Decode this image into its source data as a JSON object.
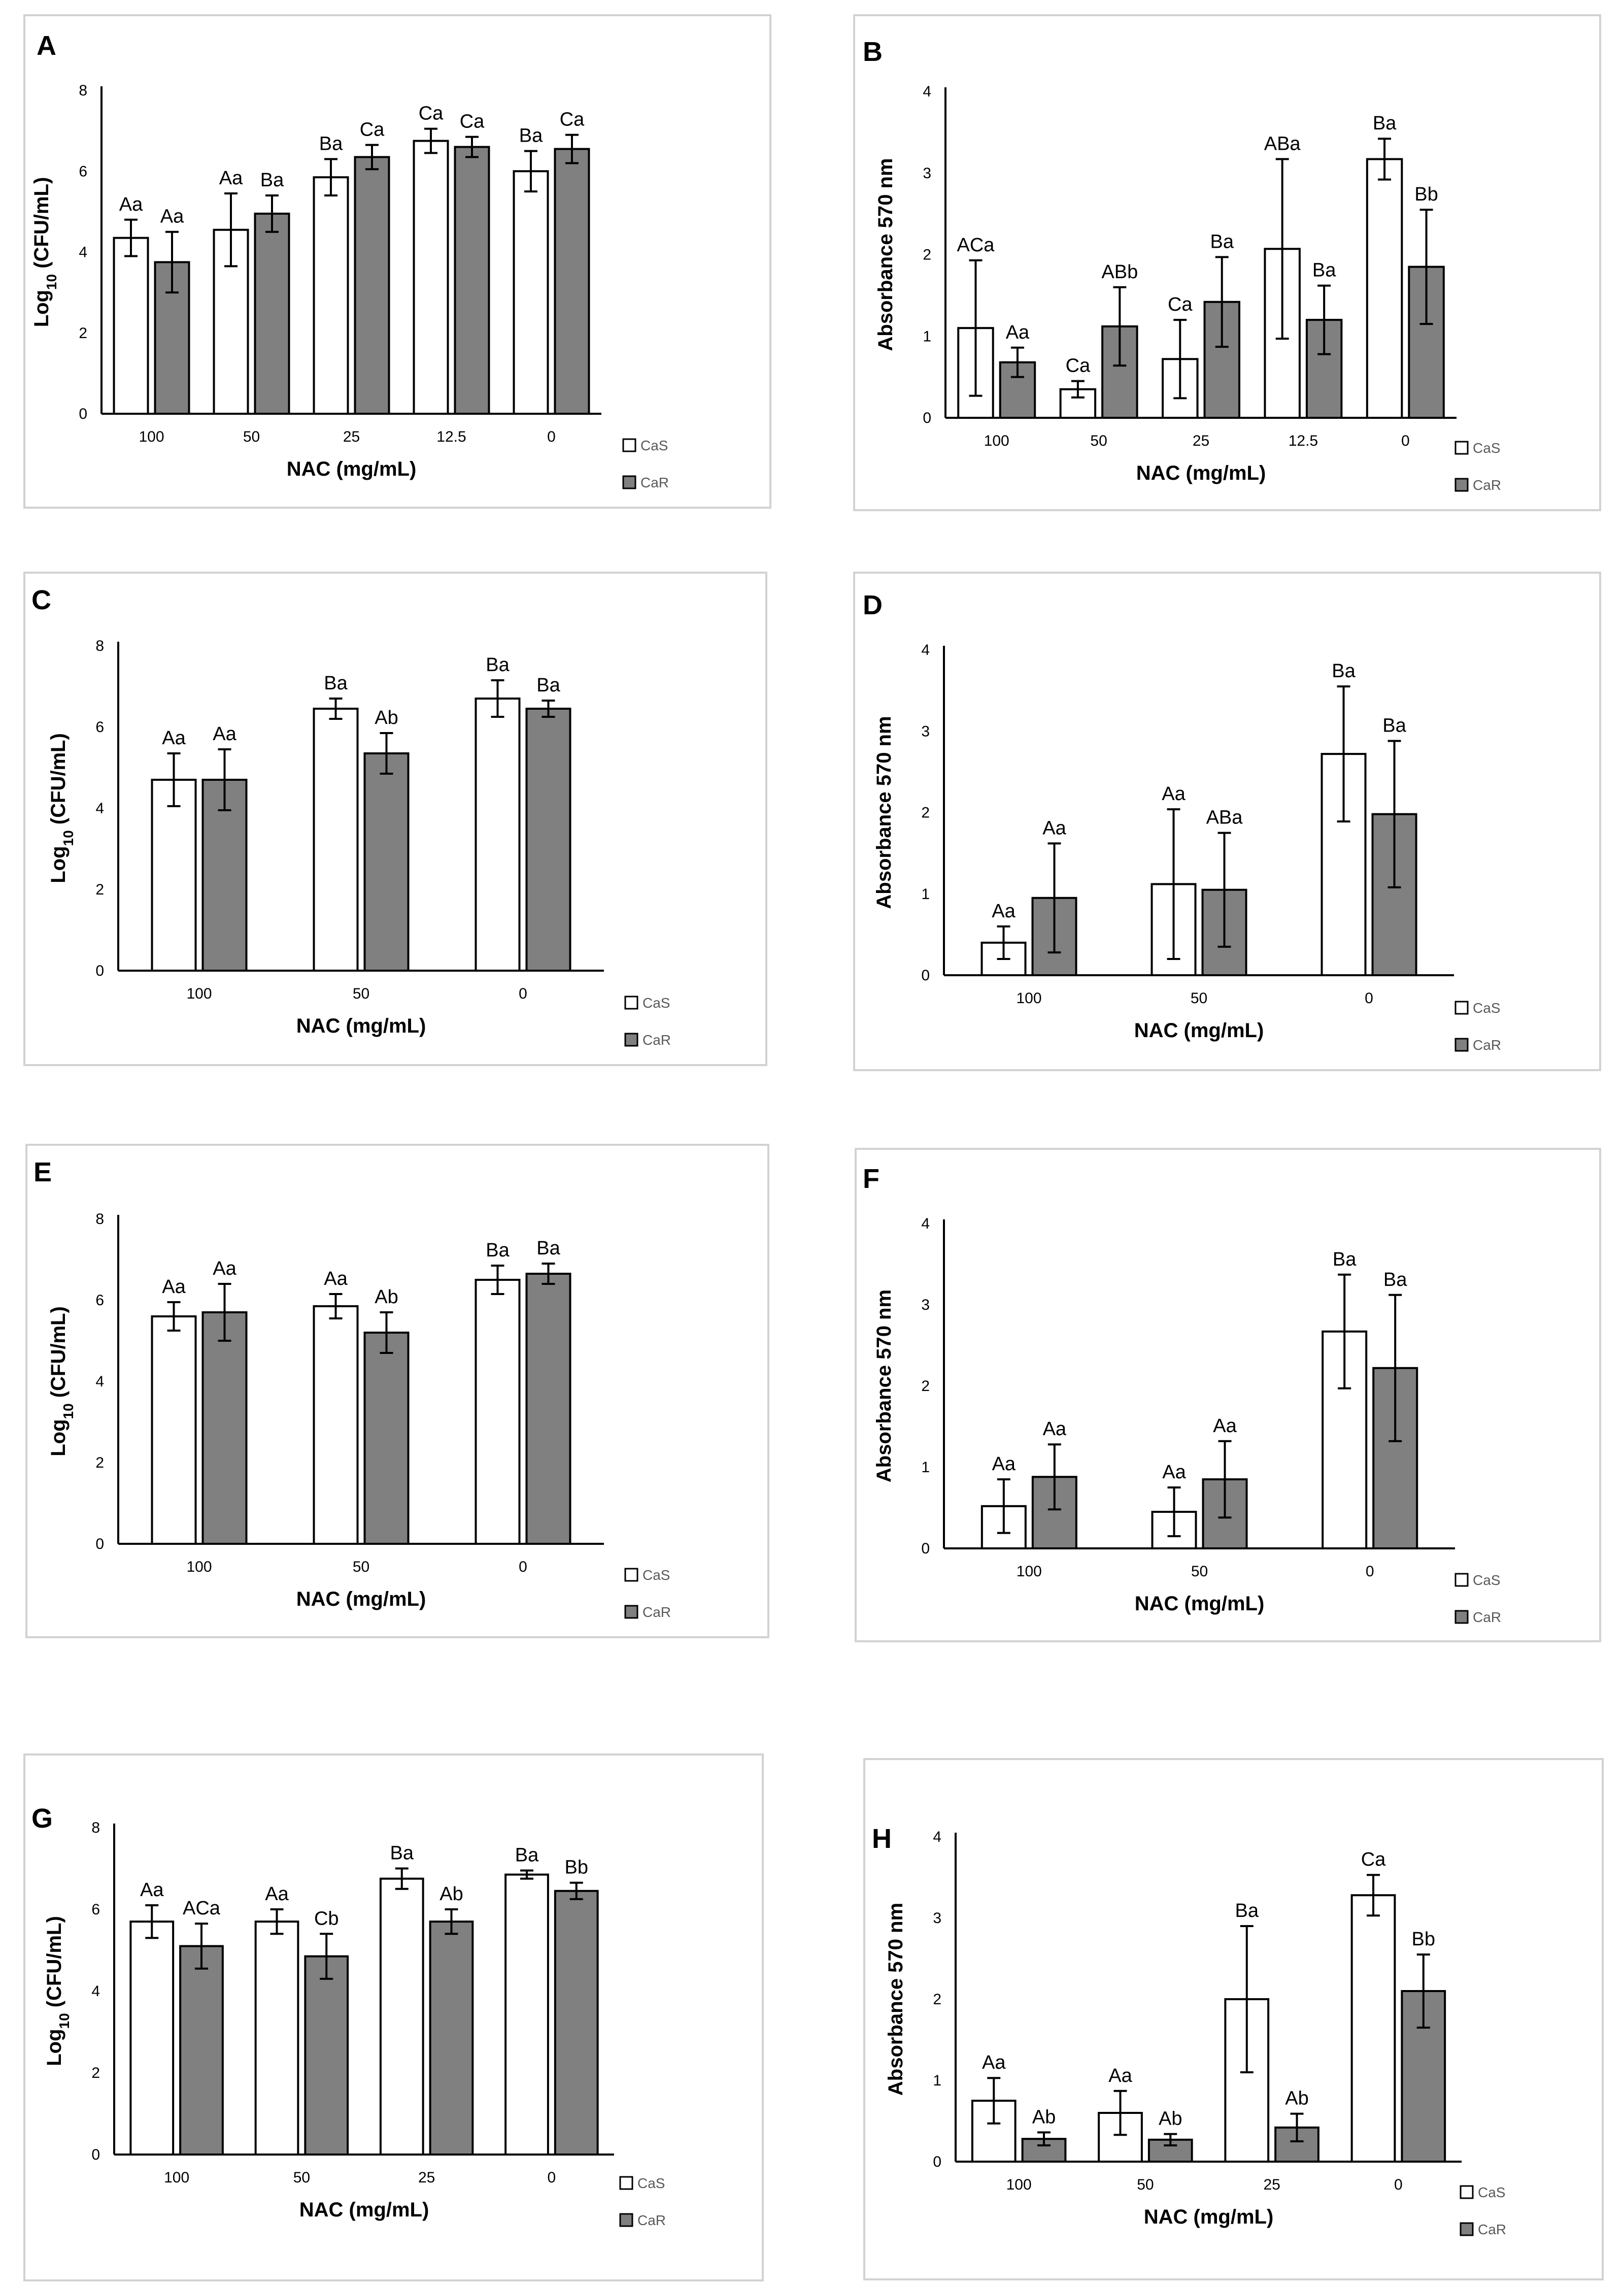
{
  "colors": {
    "CaS": "#ffffff",
    "CaR": "#808080",
    "frame": "#d2d2d2"
  },
  "chart_data": [
    {
      "panel": "A",
      "type": "bar",
      "xlabel": "NAC (mg/mL)",
      "ylabel_main": "Log",
      "ylabel_sub": "10",
      "ylabel_tail": " (CFU/mL)",
      "ylim": [
        0,
        8
      ],
      "yticks": [
        "0",
        "2",
        "4",
        "6",
        "8"
      ],
      "categories": [
        "100",
        "50",
        "25",
        "12.5",
        "0"
      ],
      "series": [
        {
          "name": "CaS",
          "values": [
            4.35,
            4.55,
            5.85,
            6.75,
            6.0
          ],
          "errors": [
            0.45,
            0.9,
            0.45,
            0.3,
            0.5
          ],
          "labels": [
            "Aa",
            "Aa",
            "Ba",
            "Ca",
            "Ba"
          ]
        },
        {
          "name": "CaR",
          "values": [
            3.75,
            4.95,
            6.35,
            6.6,
            6.55
          ],
          "errors": [
            0.75,
            0.45,
            0.3,
            0.25,
            0.35
          ],
          "labels": [
            "Aa",
            "Ba",
            "Ca",
            "Ca",
            "Ca"
          ]
        }
      ],
      "legend": "right"
    },
    {
      "panel": "B",
      "type": "bar",
      "xlabel": "NAC (mg/mL)",
      "ylabel_main": "Absorbance 570 nm",
      "ylabel_sub": "",
      "ylabel_tail": "",
      "ylim": [
        0,
        4
      ],
      "yticks": [
        "0",
        "1",
        "2",
        "3",
        "4"
      ],
      "categories": [
        "100",
        "50",
        "25",
        "12.5",
        "0"
      ],
      "series": [
        {
          "name": "CaS",
          "values": [
            1.1,
            0.35,
            0.72,
            2.07,
            3.17
          ],
          "errors": [
            0.83,
            0.1,
            0.48,
            1.1,
            0.25
          ],
          "labels": [
            "ACa",
            "Ca",
            "Ca",
            "ABa",
            "Ba"
          ]
        },
        {
          "name": "CaR",
          "values": [
            0.68,
            1.12,
            1.42,
            1.2,
            1.85
          ],
          "errors": [
            0.18,
            0.48,
            0.55,
            0.42,
            0.7
          ],
          "labels": [
            "Aa",
            "ABb",
            "Ba",
            "Ba",
            "Bb"
          ]
        }
      ],
      "legend": "right"
    },
    {
      "panel": "C",
      "type": "bar",
      "xlabel": "NAC (mg/mL)",
      "ylabel_main": "Log",
      "ylabel_sub": "10",
      "ylabel_tail": " (CFU/mL)",
      "ylim": [
        0,
        8
      ],
      "yticks": [
        "0",
        "2",
        "4",
        "6",
        "8"
      ],
      "categories": [
        "100",
        "50",
        "0"
      ],
      "series": [
        {
          "name": "CaS",
          "values": [
            4.7,
            6.45,
            6.7
          ],
          "errors": [
            0.65,
            0.25,
            0.45
          ],
          "labels": [
            "Aa",
            "Ba",
            "Ba"
          ]
        },
        {
          "name": "CaR",
          "values": [
            4.7,
            5.35,
            6.45
          ],
          "errors": [
            0.75,
            0.5,
            0.2
          ],
          "labels": [
            "Aa",
            "Ab",
            "Ba"
          ]
        }
      ],
      "legend": "right"
    },
    {
      "panel": "D",
      "type": "bar",
      "xlabel": "NAC (mg/mL)",
      "ylabel_main": "Absorbance 570 nm",
      "ylabel_sub": "",
      "ylabel_tail": "",
      "ylim": [
        0,
        4
      ],
      "yticks": [
        "0",
        "1",
        "2",
        "3",
        "4"
      ],
      "categories": [
        "100",
        "50",
        "0"
      ],
      "series": [
        {
          "name": "CaS",
          "values": [
            0.4,
            1.12,
            2.72
          ],
          "errors": [
            0.2,
            0.92,
            0.83
          ],
          "labels": [
            "Aa",
            "Aa",
            "Ba"
          ]
        },
        {
          "name": "CaR",
          "values": [
            0.95,
            1.05,
            1.98
          ],
          "errors": [
            0.67,
            0.7,
            0.9
          ],
          "labels": [
            "Aa",
            "ABa",
            "Ba"
          ]
        }
      ],
      "legend": "right"
    },
    {
      "panel": "E",
      "type": "bar",
      "xlabel": "NAC (mg/mL)",
      "ylabel_main": "Log",
      "ylabel_sub": "10",
      "ylabel_tail": " (CFU/mL)",
      "ylim": [
        0,
        8
      ],
      "yticks": [
        "0",
        "2",
        "4",
        "6",
        "8"
      ],
      "categories": [
        "100",
        "50",
        "0"
      ],
      "series": [
        {
          "name": "CaS",
          "values": [
            5.6,
            5.85,
            6.5
          ],
          "errors": [
            0.35,
            0.3,
            0.35
          ],
          "labels": [
            "Aa",
            "Aa",
            "Ba"
          ]
        },
        {
          "name": "CaR",
          "values": [
            5.7,
            5.2,
            6.65
          ],
          "errors": [
            0.7,
            0.5,
            0.25
          ],
          "labels": [
            "Aa",
            "Ab",
            "Ba"
          ]
        }
      ],
      "legend": "right"
    },
    {
      "panel": "F",
      "type": "bar",
      "xlabel": "NAC (mg/mL)",
      "ylabel_main": "Absorbance 570 nm",
      "ylabel_sub": "",
      "ylabel_tail": "",
      "ylim": [
        0,
        4
      ],
      "yticks": [
        "0",
        "1",
        "2",
        "3",
        "4"
      ],
      "categories": [
        "100",
        "50",
        "0"
      ],
      "series": [
        {
          "name": "CaS",
          "values": [
            0.52,
            0.45,
            2.67
          ],
          "errors": [
            0.33,
            0.3,
            0.7
          ],
          "labels": [
            "Aa",
            "Aa",
            "Ba"
          ]
        },
        {
          "name": "CaR",
          "values": [
            0.88,
            0.85,
            2.22
          ],
          "errors": [
            0.4,
            0.47,
            0.9
          ],
          "labels": [
            "Aa",
            "Aa",
            "Ba"
          ]
        }
      ],
      "legend": "right"
    },
    {
      "panel": "G",
      "type": "bar",
      "xlabel": "NAC (mg/mL)",
      "ylabel_main": "Log",
      "ylabel_sub": "10",
      "ylabel_tail": " (CFU/mL)",
      "ylim": [
        0,
        8
      ],
      "yticks": [
        "0",
        "2",
        "4",
        "6",
        "8"
      ],
      "categories": [
        "100",
        "50",
        "25",
        "0"
      ],
      "series": [
        {
          "name": "CaS",
          "values": [
            5.7,
            5.7,
            6.75,
            6.85
          ],
          "errors": [
            0.4,
            0.3,
            0.25,
            0.1
          ],
          "labels": [
            "Aa",
            "Aa",
            "Ba",
            "Ba"
          ]
        },
        {
          "name": "CaR",
          "values": [
            5.1,
            4.85,
            5.7,
            6.45
          ],
          "errors": [
            0.55,
            0.55,
            0.3,
            0.2
          ],
          "labels": [
            "ACa",
            "Cb",
            "Ab",
            "Bb"
          ]
        }
      ],
      "legend": "right"
    },
    {
      "panel": "H",
      "type": "bar",
      "xlabel": "NAC (mg/mL)",
      "ylabel_main": "Absorbance 570 nm",
      "ylabel_sub": "",
      "ylabel_tail": "",
      "ylim": [
        0,
        4
      ],
      "yticks": [
        "0",
        "1",
        "2",
        "3",
        "4"
      ],
      "categories": [
        "100",
        "50",
        "25",
        "0"
      ],
      "series": [
        {
          "name": "CaS",
          "values": [
            0.75,
            0.6,
            2.0,
            3.28
          ],
          "errors": [
            0.28,
            0.27,
            0.9,
            0.25
          ],
          "labels": [
            "Aa",
            "Aa",
            "Ba",
            "Ca"
          ]
        },
        {
          "name": "CaR",
          "values": [
            0.28,
            0.27,
            0.42,
            2.1
          ],
          "errors": [
            0.08,
            0.07,
            0.17,
            0.45
          ],
          "labels": [
            "Ab",
            "Ab",
            "Ab",
            "Bb"
          ]
        }
      ],
      "legend": "right"
    }
  ]
}
